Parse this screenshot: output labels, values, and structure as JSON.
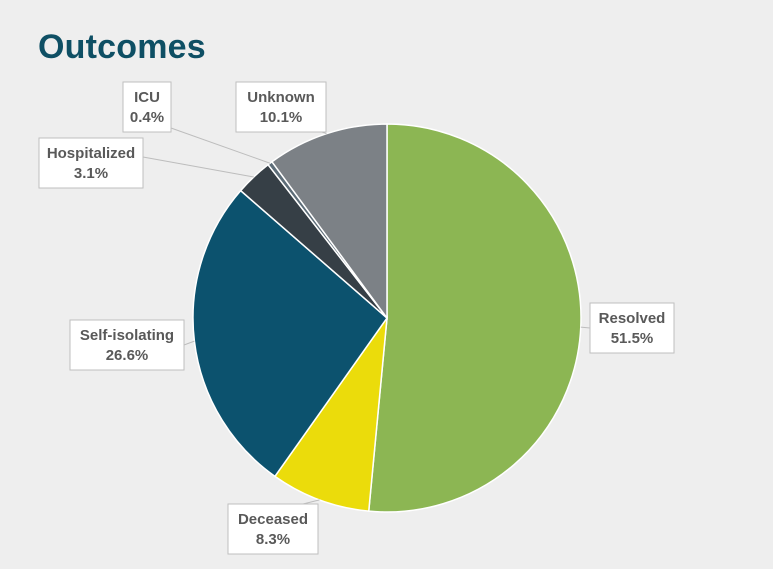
{
  "title": "Outcomes",
  "chart_data": {
    "type": "pie",
    "title": "Outcomes",
    "start_angle_deg": 0,
    "direction": "clockwise",
    "slices": [
      {
        "name": "Resolved",
        "value": 51.5,
        "label": "51.5%",
        "color": "#8cb653"
      },
      {
        "name": "Deceased",
        "value": 8.3,
        "label": "8.3%",
        "color": "#ebdc0b"
      },
      {
        "name": "Self-isolating",
        "value": 26.6,
        "label": "26.6%",
        "color": "#0c526e"
      },
      {
        "name": "Hospitalized",
        "value": 3.1,
        "label": "3.1%",
        "color": "#363f46"
      },
      {
        "name": "ICU",
        "value": 0.4,
        "label": "0.4%",
        "color": "#5d6d78"
      },
      {
        "name": "Unknown",
        "value": 10.1,
        "label": "10.1%",
        "color": "#7c8186"
      }
    ]
  }
}
